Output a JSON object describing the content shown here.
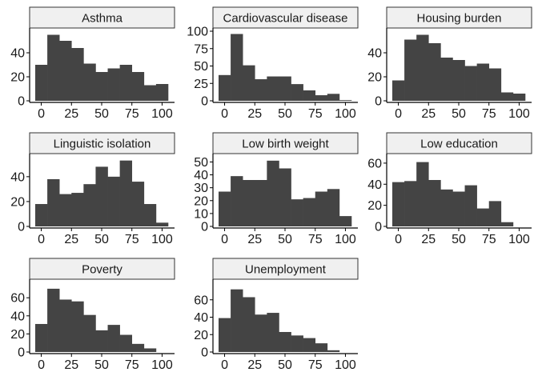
{
  "chart_data": {
    "type": "bar",
    "layout": "faceted-histogram",
    "bar_color": "#444444",
    "strip_fill": "#f0f0f0",
    "x_ticks": [
      0,
      25,
      50,
      75,
      100
    ],
    "bin_starts": [
      -5,
      5,
      15,
      25,
      35,
      45,
      55,
      65,
      75,
      85,
      95
    ],
    "bin_width": 10,
    "xlim": [
      -5,
      105
    ],
    "facets": [
      {
        "name": "Asthma",
        "ylim": [
          0,
          58
        ],
        "y_ticks": [
          0,
          20,
          40
        ],
        "values": [
          30,
          55,
          50,
          44,
          31,
          24,
          27,
          30,
          24,
          13,
          14
        ]
      },
      {
        "name": "Cardiovascular disease",
        "ylim": [
          0,
          100
        ],
        "y_ticks": [
          0,
          25,
          50,
          75,
          100
        ],
        "values": [
          37,
          96,
          51,
          31,
          35,
          35,
          24,
          15,
          8,
          10,
          1
        ]
      },
      {
        "name": "Housing burden",
        "ylim": [
          0,
          58
        ],
        "y_ticks": [
          0,
          20,
          40
        ],
        "values": [
          17,
          51,
          55,
          48,
          36,
          34,
          29,
          31,
          27,
          7,
          6
        ]
      },
      {
        "name": "Linguistic isolation",
        "ylim": [
          0,
          56
        ],
        "y_ticks": [
          0,
          20,
          40
        ],
        "values": [
          18,
          38,
          26,
          27,
          34,
          48,
          40,
          53,
          36,
          18,
          3
        ]
      },
      {
        "name": "Low birth weight",
        "ylim": [
          0,
          54
        ],
        "y_ticks": [
          0,
          10,
          20,
          30,
          40,
          50
        ],
        "values": [
          27,
          39,
          36,
          36,
          51,
          45,
          21,
          22,
          27,
          29,
          8
        ]
      },
      {
        "name": "Low education",
        "ylim": [
          0,
          66
        ],
        "y_ticks": [
          0,
          20,
          40,
          60
        ],
        "values": [
          42,
          43,
          61,
          44,
          35,
          33,
          39,
          17,
          24,
          4,
          0
        ]
      },
      {
        "name": "Poverty",
        "ylim": [
          0,
          77
        ],
        "y_ticks": [
          0,
          20,
          40,
          60
        ],
        "values": [
          31,
          70,
          58,
          56,
          41,
          24,
          30,
          19,
          9,
          4,
          0
        ]
      },
      {
        "name": "Unemployment",
        "ylim": [
          0,
          80
        ],
        "y_ticks": [
          0,
          20,
          40,
          60
        ],
        "values": [
          39,
          72,
          63,
          43,
          45,
          23,
          19,
          16,
          10,
          2,
          0
        ]
      }
    ]
  }
}
